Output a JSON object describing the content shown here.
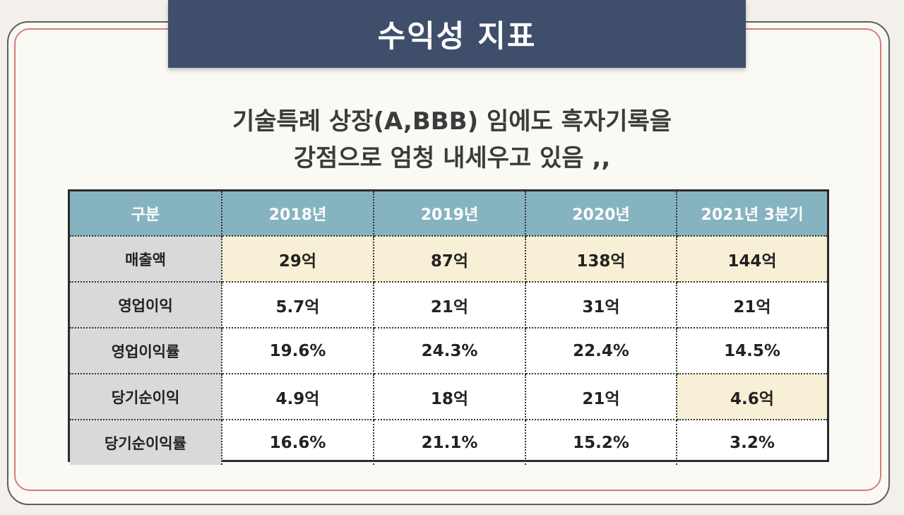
{
  "banner": {
    "title": "수익성 지표"
  },
  "subtitle": {
    "line1": "기술특례 상장(A,BBB) 임에도 흑자기록을",
    "line2": "강점으로 엄청 내세우고 있음 ,,"
  },
  "table": {
    "headers": [
      "구분",
      "2018년",
      "2019년",
      "2020년",
      "2021년 3분기"
    ],
    "rows": [
      {
        "label": "매출액",
        "values": [
          "29억",
          "87억",
          "138억",
          "144억"
        ]
      },
      {
        "label": "영업이익",
        "values": [
          "5.7억",
          "21억",
          "31억",
          "21억"
        ]
      },
      {
        "label": "영업이익률",
        "values": [
          "19.6%",
          "24.3%",
          "22.4%",
          "14.5%"
        ]
      },
      {
        "label": "당기순이익",
        "values": [
          "4.9억",
          "18억",
          "21억",
          "4.6억"
        ]
      },
      {
        "label": "당기순이익률",
        "values": [
          "16.6%",
          "21.1%",
          "15.2%",
          "3.2%"
        ]
      }
    ]
  },
  "colors": {
    "banner": "#3f4e6b",
    "header": "#86b3c0",
    "highlight": "#f8f0d6",
    "label_bg": "#d9d9d9",
    "frame_accent": "#d27c7c"
  }
}
